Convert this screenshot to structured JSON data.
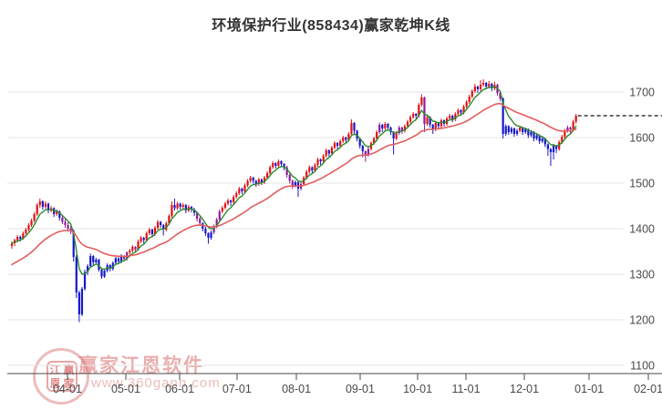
{
  "title": "环境保护行业(858434)赢家乾坤K线",
  "watermark": {
    "logo_chars": [
      "江",
      "赢",
      "恩",
      "家"
    ],
    "brand": "赢家江恩软件",
    "url": "www.360gann.com",
    "color": "#dd7777"
  },
  "colors": {
    "up": "#e31212",
    "down": "#1717cd",
    "signal": "#8e1b9b",
    "ma_fast": "#2e8b2e",
    "ma_slow": "#e35d5d",
    "grid": "#e4e4e4",
    "axis": "#4a4a4a",
    "label": "#4a4a4a",
    "last_price_line": "#111111",
    "title_text": "#333333"
  },
  "chart_data": {
    "type": "candlestick",
    "title": "环境保护行业(858434)赢家乾坤K线",
    "legend_position": "none",
    "grid": "horizontal",
    "y_axis": {
      "ticks": [
        1100,
        1200,
        1300,
        1400,
        1500,
        1600,
        1700
      ],
      "side": "right"
    },
    "x_axis": {
      "labels": [
        "04-01",
        "05-01",
        "06-01",
        "07-01",
        "08-01",
        "09-01",
        "10-01",
        "11-01",
        "12-01",
        "01-01",
        "02-01"
      ],
      "day_offsets": [
        19.8,
        40.6,
        59.8,
        80.2,
        101.4,
        124.1,
        144.6,
        161.8,
        182.6,
        205.7,
        226.8
      ]
    },
    "last_price": 1648,
    "candle_color_codes": {
      "0": "down-blue",
      "1": "up-red",
      "2": "signal-purple"
    },
    "ma": [
      {
        "name": "fast",
        "period": 6,
        "start": 1368,
        "color_key": "ma_fast"
      },
      {
        "name": "slow",
        "period": 30,
        "start": 1318,
        "color_key": "ma_slow"
      }
    ],
    "candles": [
      [
        1362,
        1372,
        1356,
        1368,
        1
      ],
      [
        1368,
        1378,
        1362,
        1375,
        1
      ],
      [
        1375,
        1386,
        1370,
        1382,
        1
      ],
      [
        1382,
        1385,
        1372,
        1378,
        0
      ],
      [
        1378,
        1394,
        1376,
        1390,
        1
      ],
      [
        1390,
        1402,
        1386,
        1398,
        1
      ],
      [
        1398,
        1412,
        1394,
        1408,
        1
      ],
      [
        1408,
        1422,
        1404,
        1418,
        1
      ],
      [
        1418,
        1436,
        1414,
        1432,
        1
      ],
      [
        1432,
        1456,
        1428,
        1452,
        1
      ],
      [
        1452,
        1466,
        1446,
        1460,
        1
      ],
      [
        1460,
        1462,
        1442,
        1448,
        0
      ],
      [
        1448,
        1460,
        1444,
        1455,
        1
      ],
      [
        1455,
        1457,
        1434,
        1440,
        0
      ],
      [
        1440,
        1450,
        1436,
        1445,
        1
      ],
      [
        1445,
        1447,
        1426,
        1432,
        0
      ],
      [
        1432,
        1442,
        1428,
        1438,
        1
      ],
      [
        1438,
        1440,
        1418,
        1424,
        0
      ],
      [
        1424,
        1430,
        1410,
        1415,
        2
      ],
      [
        1415,
        1422,
        1402,
        1408,
        2
      ],
      [
        1408,
        1414,
        1394,
        1400,
        2
      ],
      [
        1400,
        1406,
        1388,
        1395,
        2
      ],
      [
        1395,
        1398,
        1328,
        1338,
        0
      ],
      [
        1338,
        1342,
        1248,
        1260,
        0
      ],
      [
        1260,
        1264,
        1195,
        1212,
        0
      ],
      [
        1212,
        1272,
        1208,
        1268,
        0
      ],
      [
        1268,
        1310,
        1264,
        1305,
        0
      ],
      [
        1305,
        1322,
        1298,
        1318,
        0
      ],
      [
        1318,
        1345,
        1314,
        1340,
        0
      ],
      [
        1340,
        1342,
        1320,
        1326,
        0
      ],
      [
        1326,
        1336,
        1322,
        1332,
        0
      ],
      [
        1332,
        1334,
        1306,
        1310,
        0
      ],
      [
        1310,
        1314,
        1290,
        1295,
        0
      ],
      [
        1295,
        1312,
        1292,
        1308,
        0
      ],
      [
        1308,
        1324,
        1304,
        1320,
        0
      ],
      [
        1320,
        1322,
        1306,
        1312,
        0
      ],
      [
        1312,
        1328,
        1308,
        1325,
        0
      ],
      [
        1325,
        1338,
        1320,
        1335,
        0
      ],
      [
        1335,
        1337,
        1322,
        1328,
        0
      ],
      [
        1328,
        1344,
        1324,
        1340,
        0
      ],
      [
        1340,
        1342,
        1328,
        1334,
        2
      ],
      [
        1334,
        1350,
        1330,
        1348,
        2
      ],
      [
        1348,
        1356,
        1340,
        1352,
        1
      ],
      [
        1352,
        1364,
        1348,
        1360,
        1
      ],
      [
        1360,
        1362,
        1348,
        1355,
        2
      ],
      [
        1355,
        1376,
        1352,
        1372,
        1
      ],
      [
        1372,
        1384,
        1368,
        1380,
        1
      ],
      [
        1380,
        1382,
        1368,
        1375,
        0
      ],
      [
        1375,
        1394,
        1372,
        1390,
        1
      ],
      [
        1390,
        1402,
        1386,
        1398,
        1
      ],
      [
        1398,
        1400,
        1382,
        1388,
        0
      ],
      [
        1388,
        1406,
        1384,
        1402,
        1
      ],
      [
        1402,
        1419,
        1398,
        1415,
        1
      ],
      [
        1415,
        1417,
        1402,
        1408,
        0
      ],
      [
        1408,
        1410,
        1385,
        1398,
        0
      ],
      [
        1398,
        1416,
        1394,
        1412,
        1
      ],
      [
        1412,
        1432,
        1408,
        1428,
        1
      ],
      [
        1428,
        1460,
        1424,
        1452,
        1
      ],
      [
        1452,
        1466,
        1440,
        1445,
        0
      ],
      [
        1445,
        1459,
        1441,
        1455,
        1
      ],
      [
        1455,
        1457,
        1442,
        1448,
        0
      ],
      [
        1448,
        1456,
        1444,
        1452,
        1
      ],
      [
        1452,
        1454,
        1434,
        1440,
        0
      ],
      [
        1440,
        1452,
        1436,
        1448,
        1
      ],
      [
        1448,
        1450,
        1436,
        1442,
        0
      ],
      [
        1442,
        1446,
        1428,
        1435,
        0
      ],
      [
        1435,
        1438,
        1416,
        1422,
        2
      ],
      [
        1422,
        1426,
        1406,
        1412,
        2
      ],
      [
        1412,
        1414,
        1394,
        1400,
        0
      ],
      [
        1400,
        1404,
        1384,
        1390,
        0
      ],
      [
        1390,
        1392,
        1367,
        1380,
        0
      ],
      [
        1380,
        1396,
        1376,
        1392,
        0
      ],
      [
        1392,
        1409,
        1388,
        1405,
        2
      ],
      [
        1405,
        1424,
        1401,
        1420,
        2
      ],
      [
        1420,
        1442,
        1416,
        1438,
        2
      ],
      [
        1438,
        1450,
        1434,
        1446,
        1
      ],
      [
        1446,
        1459,
        1442,
        1455,
        1
      ],
      [
        1455,
        1466,
        1451,
        1462,
        1
      ],
      [
        1462,
        1464,
        1450,
        1458,
        0
      ],
      [
        1458,
        1474,
        1454,
        1470,
        1
      ],
      [
        1470,
        1482,
        1466,
        1478,
        1
      ],
      [
        1478,
        1492,
        1474,
        1488,
        1
      ],
      [
        1488,
        1490,
        1476,
        1482,
        0
      ],
      [
        1482,
        1499,
        1478,
        1495,
        1
      ],
      [
        1495,
        1509,
        1491,
        1505,
        1
      ],
      [
        1505,
        1516,
        1501,
        1512,
        1
      ],
      [
        1512,
        1514,
        1499,
        1505,
        0
      ],
      [
        1505,
        1507,
        1492,
        1498,
        0
      ],
      [
        1498,
        1512,
        1494,
        1508,
        1
      ],
      [
        1508,
        1510,
        1496,
        1502,
        0
      ],
      [
        1502,
        1516,
        1498,
        1512,
        1
      ],
      [
        1512,
        1526,
        1508,
        1522,
        1
      ],
      [
        1522,
        1539,
        1518,
        1535,
        1
      ],
      [
        1535,
        1548,
        1531,
        1544,
        1
      ],
      [
        1544,
        1546,
        1532,
        1538,
        0
      ],
      [
        1538,
        1552,
        1534,
        1548,
        1
      ],
      [
        1548,
        1550,
        1536,
        1542,
        0
      ],
      [
        1542,
        1544,
        1528,
        1535,
        0
      ],
      [
        1535,
        1538,
        1512,
        1518,
        2
      ],
      [
        1518,
        1522,
        1499,
        1505,
        2
      ],
      [
        1505,
        1508,
        1487,
        1495,
        2
      ],
      [
        1495,
        1506,
        1491,
        1502,
        0
      ],
      [
        1502,
        1504,
        1470,
        1488,
        0
      ],
      [
        1488,
        1502,
        1484,
        1498,
        2
      ],
      [
        1498,
        1516,
        1494,
        1512,
        1
      ],
      [
        1512,
        1529,
        1508,
        1525,
        1
      ],
      [
        1525,
        1539,
        1521,
        1535,
        1
      ],
      [
        1535,
        1537,
        1522,
        1528,
        0
      ],
      [
        1528,
        1544,
        1524,
        1540,
        1
      ],
      [
        1540,
        1556,
        1536,
        1552,
        1
      ],
      [
        1552,
        1554,
        1540,
        1548,
        0
      ],
      [
        1548,
        1564,
        1544,
        1560,
        1
      ],
      [
        1560,
        1576,
        1556,
        1572,
        1
      ],
      [
        1572,
        1574,
        1558,
        1565,
        0
      ],
      [
        1565,
        1582,
        1561,
        1578,
        1
      ],
      [
        1578,
        1592,
        1574,
        1588,
        1
      ],
      [
        1588,
        1590,
        1575,
        1582,
        0
      ],
      [
        1582,
        1596,
        1578,
        1592,
        1
      ],
      [
        1592,
        1604,
        1588,
        1600,
        1
      ],
      [
        1600,
        1602,
        1588,
        1595,
        0
      ],
      [
        1595,
        1612,
        1591,
        1608,
        1
      ],
      [
        1608,
        1640,
        1604,
        1632,
        1
      ],
      [
        1632,
        1634,
        1608,
        1615,
        0
      ],
      [
        1615,
        1617,
        1592,
        1598,
        0
      ],
      [
        1598,
        1600,
        1576,
        1582,
        0
      ],
      [
        1582,
        1584,
        1557,
        1570,
        0
      ],
      [
        1570,
        1572,
        1547,
        1562,
        2
      ],
      [
        1562,
        1579,
        1558,
        1575,
        2
      ],
      [
        1575,
        1592,
        1571,
        1588,
        1
      ],
      [
        1588,
        1602,
        1584,
        1598,
        1
      ],
      [
        1598,
        1616,
        1594,
        1612,
        1
      ],
      [
        1612,
        1633,
        1608,
        1628,
        2
      ],
      [
        1628,
        1630,
        1612,
        1620,
        0
      ],
      [
        1620,
        1634,
        1616,
        1630,
        1
      ],
      [
        1630,
        1632,
        1616,
        1622,
        0
      ],
      [
        1622,
        1624,
        1606,
        1612,
        0
      ],
      [
        1612,
        1614,
        1563,
        1598,
        0
      ],
      [
        1598,
        1614,
        1594,
        1610,
        1
      ],
      [
        1610,
        1626,
        1606,
        1622,
        2
      ],
      [
        1622,
        1624,
        1608,
        1615,
        2
      ],
      [
        1615,
        1629,
        1611,
        1625,
        1
      ],
      [
        1625,
        1639,
        1621,
        1635,
        1
      ],
      [
        1635,
        1649,
        1631,
        1645,
        1
      ],
      [
        1645,
        1656,
        1641,
        1652,
        1
      ],
      [
        1652,
        1654,
        1640,
        1648,
        0
      ],
      [
        1648,
        1676,
        1644,
        1672,
        1
      ],
      [
        1672,
        1695,
        1668,
        1688,
        1
      ],
      [
        1688,
        1690,
        1612,
        1630,
        2
      ],
      [
        1630,
        1649,
        1626,
        1645,
        1
      ],
      [
        1645,
        1647,
        1622,
        1628,
        0
      ],
      [
        1628,
        1630,
        1608,
        1618,
        0
      ],
      [
        1618,
        1636,
        1614,
        1632,
        1
      ],
      [
        1632,
        1634,
        1618,
        1625,
        0
      ],
      [
        1625,
        1642,
        1621,
        1638,
        1
      ],
      [
        1638,
        1640,
        1624,
        1630,
        0
      ],
      [
        1630,
        1646,
        1626,
        1642,
        1
      ],
      [
        1642,
        1652,
        1638,
        1648,
        1
      ],
      [
        1648,
        1650,
        1634,
        1640,
        0
      ],
      [
        1640,
        1656,
        1636,
        1652,
        1
      ],
      [
        1652,
        1664,
        1648,
        1660,
        1
      ],
      [
        1660,
        1662,
        1648,
        1655,
        0
      ],
      [
        1655,
        1672,
        1651,
        1668,
        1
      ],
      [
        1668,
        1682,
        1664,
        1678,
        1
      ],
      [
        1678,
        1694,
        1674,
        1690,
        1
      ],
      [
        1690,
        1706,
        1686,
        1702,
        1
      ],
      [
        1702,
        1718,
        1698,
        1712,
        1
      ],
      [
        1712,
        1714,
        1698,
        1706,
        0
      ],
      [
        1706,
        1726,
        1702,
        1716,
        1
      ],
      [
        1716,
        1728,
        1712,
        1720,
        1
      ],
      [
        1720,
        1722,
        1706,
        1712,
        0
      ],
      [
        1712,
        1724,
        1708,
        1718,
        1
      ],
      [
        1718,
        1720,
        1702,
        1708,
        0
      ],
      [
        1708,
        1723,
        1704,
        1716,
        1
      ],
      [
        1716,
        1718,
        1692,
        1698,
        2
      ],
      [
        1698,
        1702,
        1680,
        1686,
        2
      ],
      [
        1686,
        1688,
        1598,
        1608,
        0
      ],
      [
        1608,
        1629,
        1604,
        1625,
        0
      ],
      [
        1625,
        1627,
        1606,
        1612,
        0
      ],
      [
        1612,
        1624,
        1608,
        1620,
        0
      ],
      [
        1620,
        1622,
        1602,
        1608,
        0
      ],
      [
        1608,
        1619,
        1604,
        1615,
        0
      ],
      [
        1615,
        1626,
        1611,
        1622,
        1
      ],
      [
        1622,
        1624,
        1606,
        1612,
        0
      ],
      [
        1612,
        1622,
        1608,
        1618,
        0
      ],
      [
        1618,
        1620,
        1599,
        1605,
        0
      ],
      [
        1605,
        1616,
        1601,
        1612,
        0
      ],
      [
        1612,
        1614,
        1592,
        1598,
        0
      ],
      [
        1598,
        1609,
        1594,
        1605,
        0
      ],
      [
        1605,
        1607,
        1586,
        1592,
        0
      ],
      [
        1592,
        1602,
        1588,
        1598,
        0
      ],
      [
        1598,
        1600,
        1579,
        1585,
        0
      ],
      [
        1585,
        1587,
        1560,
        1575,
        0
      ],
      [
        1575,
        1577,
        1538,
        1568,
        0
      ],
      [
        1568,
        1586,
        1552,
        1582,
        0
      ],
      [
        1582,
        1584,
        1566,
        1575,
        0
      ],
      [
        1575,
        1594,
        1571,
        1590,
        1
      ],
      [
        1590,
        1606,
        1586,
        1602,
        1
      ],
      [
        1602,
        1619,
        1598,
        1615,
        1
      ],
      [
        1615,
        1626,
        1611,
        1622,
        2
      ],
      [
        1622,
        1624,
        1608,
        1618,
        2
      ],
      [
        1618,
        1639,
        1614,
        1635,
        1
      ],
      [
        1635,
        1652,
        1631,
        1648,
        1
      ]
    ]
  }
}
